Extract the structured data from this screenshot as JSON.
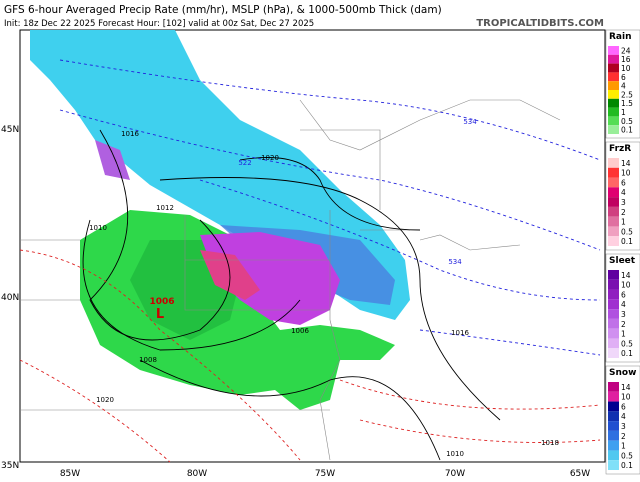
{
  "header": {
    "title": "GFS 6-hour Averaged Precip Rate (mm/hr), MSLP (hPa), & 1000-500mb Thick (dam)",
    "subtitle": "Init: 18z Dec 22 2025   Forecast Hour: [102]   valid at 00z Sat, Dec 27 2025",
    "site": "TROPICALTIDBITS.COM"
  },
  "axes": {
    "x_labels": [
      "85W",
      "80W",
      "75W",
      "70W",
      "65W"
    ],
    "y_labels": [
      "45N",
      "40N",
      "35N"
    ]
  },
  "legends": [
    {
      "title": "Rain",
      "labels": [
        "24",
        "16",
        "10",
        "6",
        "4",
        "2.5",
        "1.5",
        "1",
        "0.5",
        "0.1"
      ]
    },
    {
      "title": "FrzR",
      "labels": [
        "14",
        "10",
        "6",
        "4",
        "3",
        "2",
        "1",
        "0.5",
        "0.1"
      ]
    },
    {
      "title": "Sleet",
      "labels": [
        "14",
        "10",
        "6",
        "4",
        "3",
        "2",
        "1",
        "0.5",
        "0.1"
      ]
    },
    {
      "title": "Snow",
      "labels": [
        "14",
        "10",
        "6",
        "4",
        "3",
        "2",
        "1",
        "0.5",
        "0.1"
      ]
    }
  ],
  "map_labels": {
    "isobars": [
      "1016",
      "1020",
      "1012",
      "1010",
      "1008",
      "1006",
      "1016",
      "1020",
      "1010",
      "1018"
    ],
    "thickness": [
      "534",
      "522",
      "534"
    ],
    "low": {
      "pressure": "1006",
      "symbol": "L"
    }
  }
}
